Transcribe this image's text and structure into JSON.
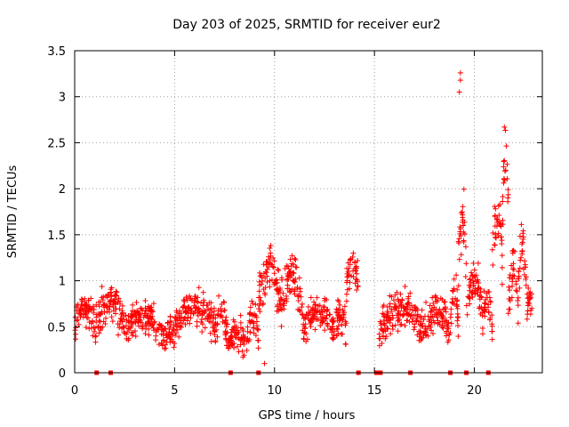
{
  "colors": {
    "series": "#ff0000",
    "grid": "#a0a0a0",
    "axis": "#000000"
  },
  "chart_data": {
    "type": "scatter",
    "title": "Day 203 of 2025, SRMTID for receiver eur2",
    "xlabel": "GPS time / hours",
    "ylabel": "SRMTID / TECUs",
    "xlim": [
      0,
      23.4
    ],
    "ylim": [
      0,
      3.5
    ],
    "xticks": [
      0,
      5,
      10,
      15,
      20
    ],
    "xtick_labels": [
      "0",
      "5",
      "10",
      "15",
      "20"
    ],
    "yticks": [
      0,
      0.5,
      1,
      1.5,
      2,
      2.5,
      3,
      3.5
    ],
    "ytick_labels": [
      "0",
      "0.5",
      "1",
      "1.5",
      "2",
      "2.5",
      "3",
      "3.5"
    ],
    "grid": true,
    "marker": "+",
    "outlier_points": [
      {
        "x": 19.3,
        "y": 3.26
      },
      {
        "x": 19.3,
        "y": 3.18
      },
      {
        "x": 19.25,
        "y": 3.05
      },
      {
        "x": 21.5,
        "y": 2.67
      },
      {
        "x": 9.5,
        "y": 0.1
      }
    ],
    "zero_markers_x": [
      1.1,
      1.8,
      7.8,
      9.2,
      14.2,
      15.1,
      15.3,
      16.8,
      18.8,
      19.6,
      20.7
    ],
    "segments": [
      {
        "t0": 0.0,
        "t1": 1.0,
        "baseline": 0.6,
        "amp": 0.2
      },
      {
        "t0": 1.0,
        "t1": 2.5,
        "baseline": 0.6,
        "amp": 0.3
      },
      {
        "t0": 2.5,
        "t1": 4.5,
        "baseline": 0.5,
        "amp": 0.2
      },
      {
        "t0": 4.5,
        "t1": 5.0,
        "baseline": 0.4,
        "amp": 0.1
      },
      {
        "t0": 5.0,
        "t1": 7.0,
        "baseline": 0.6,
        "amp": 0.2
      },
      {
        "t0": 7.0,
        "t1": 7.6,
        "baseline": 0.55,
        "amp": 0.2
      },
      {
        "t0": 7.6,
        "t1": 8.6,
        "baseline": 0.35,
        "amp": 0.15
      },
      {
        "t0": 8.6,
        "t1": 9.2,
        "baseline": 0.45,
        "amp": 0.25
      },
      {
        "t0": 9.2,
        "t1": 10.3,
        "baseline": 0.9,
        "amp": 0.4
      },
      {
        "t0": 10.3,
        "t1": 11.4,
        "baseline": 0.85,
        "amp": 0.35
      },
      {
        "t0": 11.4,
        "t1": 13.0,
        "baseline": 0.55,
        "amp": 0.2
      },
      {
        "t0": 13.0,
        "t1": 13.6,
        "baseline": 0.5,
        "amp": 0.2
      },
      {
        "t0": 13.6,
        "t1": 14.2,
        "baseline": 1.05,
        "amp": 0.2
      },
      {
        "t0": 15.2,
        "t1": 17.5,
        "baseline": 0.55,
        "amp": 0.25
      },
      {
        "t0": 17.5,
        "t1": 18.8,
        "baseline": 0.55,
        "amp": 0.25
      },
      {
        "t0": 18.8,
        "t1": 19.2,
        "baseline": 0.7,
        "amp": 0.3
      },
      {
        "t0": 19.2,
        "t1": 19.6,
        "baseline": 1.4,
        "amp": 0.6
      },
      {
        "t0": 19.6,
        "t1": 20.4,
        "baseline": 0.8,
        "amp": 0.3
      },
      {
        "t0": 20.4,
        "t1": 20.9,
        "baseline": 0.6,
        "amp": 0.25
      },
      {
        "t0": 20.9,
        "t1": 21.4,
        "baseline": 1.4,
        "amp": 0.5
      },
      {
        "t0": 21.4,
        "t1": 21.7,
        "baseline": 2.0,
        "amp": 0.5
      },
      {
        "t0": 21.7,
        "t1": 22.2,
        "baseline": 0.9,
        "amp": 0.4
      },
      {
        "t0": 22.2,
        "t1": 22.6,
        "baseline": 1.1,
        "amp": 0.4
      },
      {
        "t0": 22.6,
        "t1": 22.9,
        "baseline": 0.7,
        "amp": 0.2
      }
    ]
  }
}
